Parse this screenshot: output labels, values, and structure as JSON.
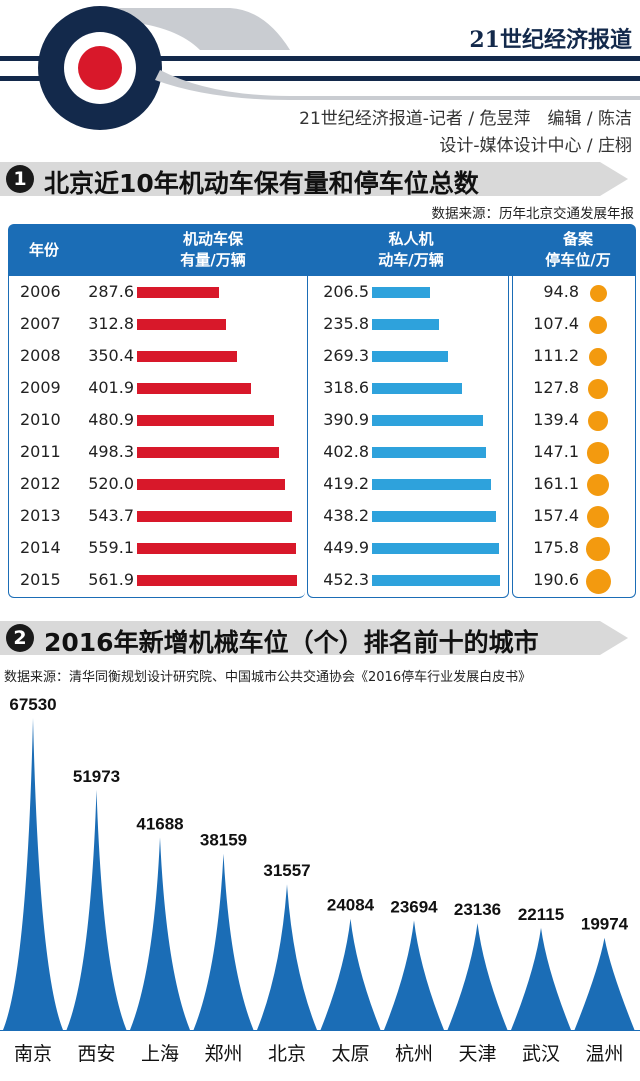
{
  "header": {
    "brand": "21世纪经济报道",
    "credit_line1": "21世纪经济报道-记者 / 危昱萍　编辑 / 陈洁",
    "credit_line2": "设计-媒体设计中心 / 庄栩"
  },
  "colors": {
    "navy": "#13294b",
    "red": "#d8182a",
    "blue": "#2ea2dc",
    "header_blue": "#1b6db6",
    "orange": "#f39a0f",
    "spike": "#1b6db6"
  },
  "section1": {
    "number": "1",
    "title": "北京近10年机动车保有量和停车位总数",
    "source": "数据来源：历年北京交通发展年报",
    "col_year": "年份",
    "col_motor_1": "机动车保",
    "col_motor_2": "有量/万辆",
    "col_private_1": "私人机",
    "col_private_2": "动车/万辆",
    "col_parking_1": "备案",
    "col_parking_2": "停车位/万"
  },
  "section2": {
    "number": "2",
    "title": "2016年新增机械车位（个）排名前十的城市",
    "source": "数据来源：清华同衡规划设计研究院、中国城市公共交通协会《2016停车行业发展白皮书》"
  },
  "chart_data": [
    {
      "type": "table",
      "title": "北京近10年机动车保有量和停车位总数",
      "categories": [
        "2006",
        "2007",
        "2008",
        "2009",
        "2010",
        "2011",
        "2012",
        "2013",
        "2014",
        "2015"
      ],
      "series": [
        {
          "name": "机动车保有量/万辆",
          "values": [
            "287.6",
            "312.8",
            "350.4",
            "401.9",
            "480.9",
            "498.3",
            "520.0",
            "543.7",
            "559.1",
            "561.9"
          ]
        },
        {
          "name": "私人机动车/万辆",
          "values": [
            "206.5",
            "235.8",
            "269.3",
            "318.6",
            "390.9",
            "402.8",
            "419.2",
            "438.2",
            "449.9",
            "452.3"
          ]
        },
        {
          "name": "备案停车位/万",
          "values": [
            "94.8",
            "107.4",
            "111.2",
            "127.8",
            "139.4",
            "147.1",
            "161.1",
            "157.4",
            "175.8",
            "190.6"
          ]
        }
      ]
    },
    {
      "type": "bar",
      "title": "2016年新增机械车位（个）排名前十的城市",
      "categories": [
        "南京",
        "西安",
        "上海",
        "郑州",
        "北京",
        "太原",
        "杭州",
        "天津",
        "武汉",
        "温州"
      ],
      "values": [
        67530,
        51973,
        41688,
        38159,
        31557,
        24084,
        23694,
        23136,
        22115,
        19974
      ],
      "ylim": [
        0,
        67530
      ]
    }
  ]
}
